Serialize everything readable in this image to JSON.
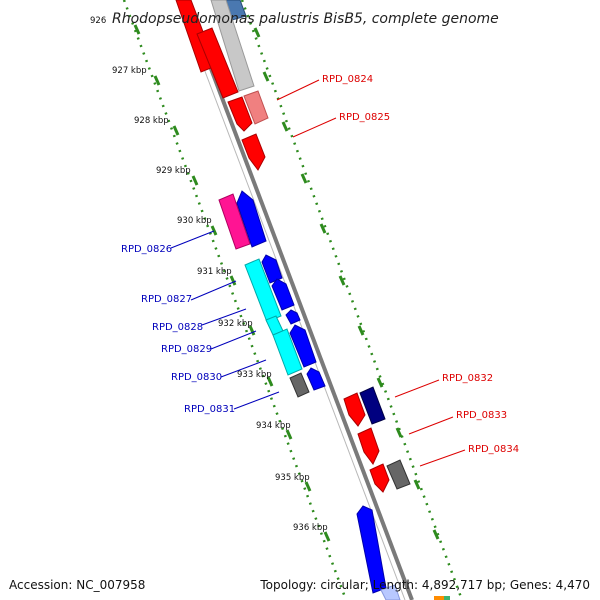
{
  "title": "Rhodopseudomonas palustris BisB5, complete genome",
  "footer": {
    "accession": "Accession: NC_007958",
    "summary": "Topology: circular; Length: 4,892,717 bp; Genes: 4,470"
  },
  "colors": {
    "backbone": "#8a8a8a",
    "tick": "#2e8b1e",
    "forward_label": "#dd0000",
    "reverse_label": "#0000bb"
  },
  "ticks": [
    "926",
    "927 kbp",
    "928 kbp",
    "929 kbp",
    "930 kbp",
    "931 kbp",
    "932 kbp",
    "933 kbp",
    "934 kbp",
    "935 kbp",
    "936 kbp"
  ],
  "forward_labels": [
    "RPD_0824",
    "RPD_0825",
    "RPD_0832",
    "RPD_0833",
    "RPD_0834"
  ],
  "reverse_labels": [
    "RPD_0826",
    "RPD_0827",
    "RPD_0828",
    "RPD_0829",
    "RPD_0830",
    "RPD_0831"
  ]
}
